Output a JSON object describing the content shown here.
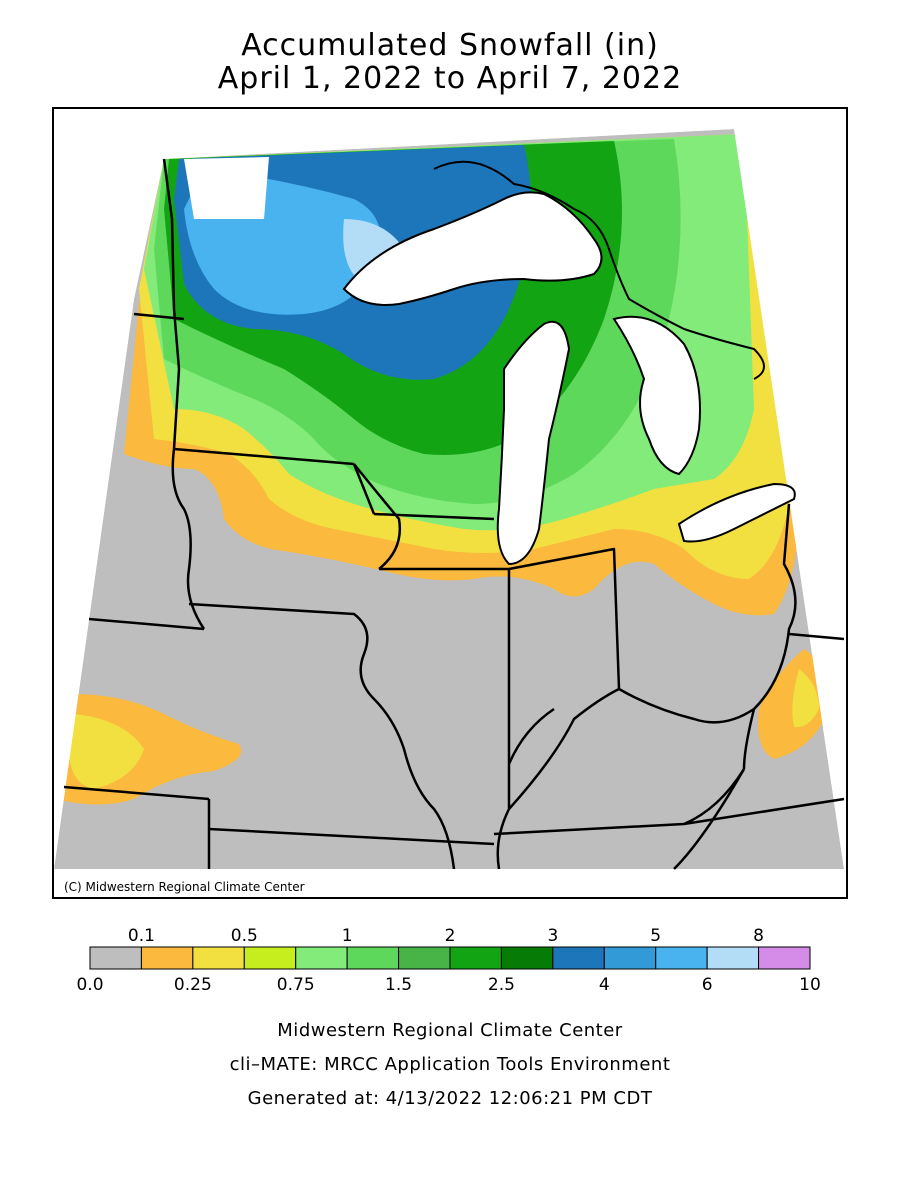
{
  "title": {
    "line1": "Accumulated Snowfall (in)",
    "line2": "April 1, 2022 to April 7, 2022"
  },
  "map": {
    "copyright": "(C) Midwestern Regional Climate Center",
    "colors": {
      "0.0": "#bebebe",
      "0.1": "#fbb93e",
      "0.25": "#f2e040",
      "0.5": "#c6ee1f",
      "0.75": "#82eb7a",
      "1": "#5ed85b",
      "1.5": "#48b347",
      "2": "#13a413",
      "2.5": "#067b06",
      "3": "#1d76b9",
      "4": "#319ad7",
      "5": "#48b3ee",
      "6": "#b3dcf7",
      "8": "#d58be8",
      "lake": "#ffffff",
      "border": "#000000"
    }
  },
  "legend": {
    "top_labels": [
      "0.1",
      "0.5",
      "1",
      "2",
      "3",
      "5",
      "8"
    ],
    "bottom_labels": [
      "0.0",
      "0.25",
      "0.75",
      "1.5",
      "2.5",
      "4",
      "6",
      "10"
    ],
    "swatches": [
      "#bebebe",
      "#fbb93e",
      "#f2e040",
      "#c6ee1f",
      "#82eb7a",
      "#5ed85b",
      "#48b347",
      "#13a413",
      "#067b06",
      "#1d76b9",
      "#319ad7",
      "#48b3ee",
      "#b3dcf7",
      "#d58be8"
    ]
  },
  "footer": {
    "line1": "Midwestern Regional Climate Center",
    "line2": "cli–MATE: MRCC Application Tools Environment",
    "line3": "Generated at: 4/13/2022 12:06:21 PM CDT"
  }
}
